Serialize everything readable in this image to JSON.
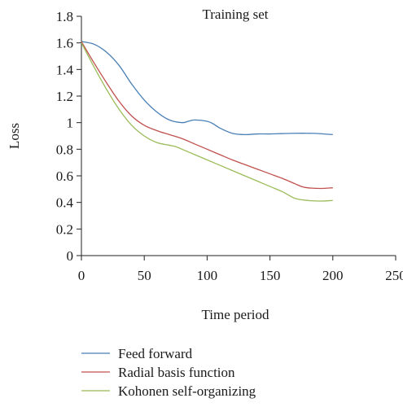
{
  "chart_data": {
    "type": "line",
    "title": "Training set",
    "xlabel": "Time period",
    "ylabel": "Loss",
    "xlim": [
      0,
      250
    ],
    "ylim": [
      0,
      1.8
    ],
    "xticks": [
      0,
      50,
      100,
      150,
      200,
      250
    ],
    "yticks": [
      0,
      0.2,
      0.4,
      0.6,
      0.8,
      1,
      1.2,
      1.4,
      1.6,
      1.8
    ],
    "xtick_labels": [
      "0",
      "50",
      "100",
      "150",
      "200",
      "250"
    ],
    "ytick_labels": [
      "0",
      "0.2",
      "0.4",
      "0.6",
      "0.8",
      "1",
      "1.2",
      "1.4",
      "1.6",
      "1.8"
    ],
    "grid": false,
    "legend_position": "bottom",
    "series": [
      {
        "name": "Feed forward",
        "color": "#4a7fb5",
        "x": [
          0,
          10,
          20,
          30,
          40,
          50,
          60,
          70,
          80,
          85,
          90,
          100,
          105,
          110,
          120,
          130,
          140,
          150,
          160,
          170,
          180,
          190,
          200
        ],
        "y": [
          1.61,
          1.59,
          1.53,
          1.43,
          1.29,
          1.17,
          1.08,
          1.02,
          1.0,
          1.01,
          1.02,
          1.01,
          0.99,
          0.96,
          0.92,
          0.91,
          0.915,
          0.915,
          0.918,
          0.92,
          0.92,
          0.917,
          0.91
        ]
      },
      {
        "name": "Radial basis function",
        "color": "#c0504d",
        "x": [
          0,
          10,
          20,
          30,
          40,
          50,
          60,
          70,
          80,
          90,
          100,
          110,
          120,
          130,
          140,
          150,
          160,
          170,
          175,
          180,
          190,
          200
        ],
        "y": [
          1.61,
          1.45,
          1.3,
          1.16,
          1.05,
          0.98,
          0.94,
          0.91,
          0.88,
          0.84,
          0.8,
          0.76,
          0.72,
          0.685,
          0.65,
          0.615,
          0.58,
          0.54,
          0.52,
          0.51,
          0.505,
          0.51
        ]
      },
      {
        "name": "Kohonen self-organizing",
        "color": "#9bbb59",
        "x": [
          0,
          10,
          20,
          30,
          40,
          50,
          60,
          70,
          75,
          80,
          90,
          100,
          110,
          120,
          130,
          140,
          150,
          160,
          170,
          180,
          190,
          200
        ],
        "y": [
          1.6,
          1.42,
          1.25,
          1.1,
          0.98,
          0.9,
          0.85,
          0.83,
          0.82,
          0.8,
          0.76,
          0.72,
          0.68,
          0.64,
          0.6,
          0.56,
          0.52,
          0.48,
          0.43,
          0.415,
          0.41,
          0.415
        ]
      }
    ]
  }
}
